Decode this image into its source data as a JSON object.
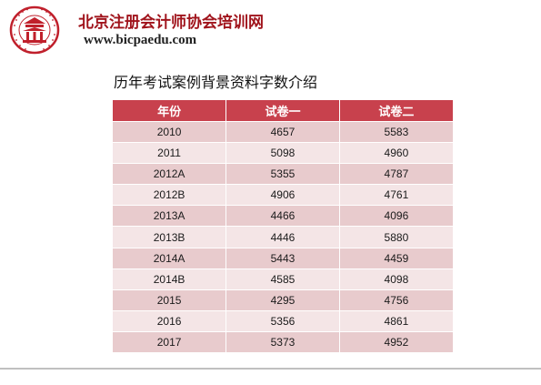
{
  "header": {
    "org_name": "北京注册会计师协会培训网",
    "org_url": "www.bicpaedu.com"
  },
  "logo": {
    "icon": "institute-seal-icon",
    "ring_text": "BEIJING INSTITUTE OF CERTIFIED PUBLIC ACCOUNTANTS",
    "color": "#c0202c"
  },
  "title": "历年考试案例背景资料字数介绍",
  "table": {
    "headers": [
      "年份",
      "试卷一",
      "试卷二"
    ],
    "rows": [
      [
        "2010",
        "4657",
        "5583"
      ],
      [
        "2011",
        "5098",
        "4960"
      ],
      [
        "2012A",
        "5355",
        "4787"
      ],
      [
        "2012B",
        "4906",
        "4761"
      ],
      [
        "2013A",
        "4466",
        "4096"
      ],
      [
        "2013B",
        "4446",
        "5880"
      ],
      [
        "2014A",
        "5443",
        "4459"
      ],
      [
        "2014B",
        "4585",
        "4098"
      ],
      [
        "2015",
        "4295",
        "4756"
      ],
      [
        "2016",
        "5356",
        "4861"
      ],
      [
        "2017",
        "5373",
        "4952"
      ]
    ]
  },
  "colors": {
    "header_bg": "#c8414d",
    "row_odd": "#e8cbcd",
    "row_even": "#f4e5e6",
    "brand": "#a0141c"
  }
}
